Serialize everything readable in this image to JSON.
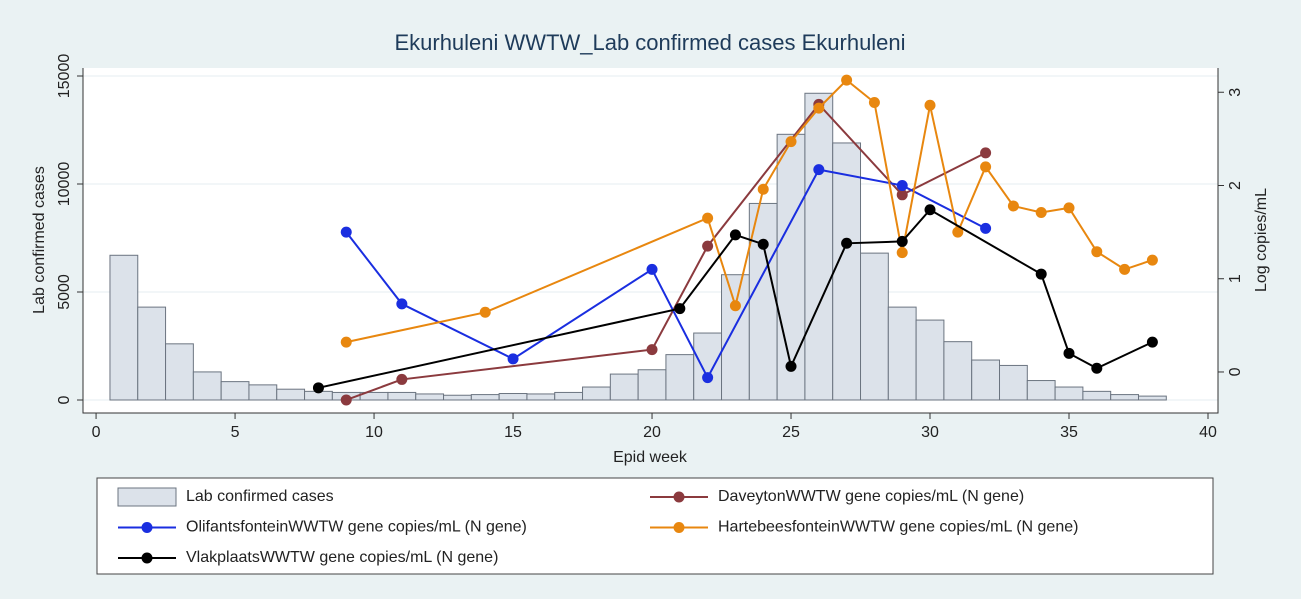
{
  "chart_data": {
    "type": "combo",
    "title": "Ekurhuleni WWTW_Lab confirmed cases Ekurhuleni",
    "x_label": "Epid week",
    "y_label": "Lab confirmed cases",
    "y2_label": "Log copies/mL",
    "xlim": [
      -0.47,
      40.36
    ],
    "xticks": [
      0,
      5,
      10,
      15,
      20,
      25,
      30,
      35,
      40
    ],
    "ylim": [
      -602,
      15370
    ],
    "yticks": [
      0,
      5000,
      10000,
      15000
    ],
    "y2lim": [
      -0.44,
      3.26
    ],
    "y2ticks": [
      0,
      1,
      2,
      3
    ],
    "grid": true,
    "legend": "bottom",
    "series": [
      {
        "name": "Lab confirmed cases",
        "type": "bar",
        "color": "#dce2ea",
        "x": [
          1,
          2,
          3,
          4,
          5,
          6,
          7,
          8,
          9,
          10,
          11,
          12,
          13,
          14,
          15,
          16,
          17,
          18,
          19,
          20,
          21,
          22,
          23,
          24,
          25,
          26,
          27,
          28,
          29,
          30,
          31,
          32,
          33,
          34,
          35,
          36,
          37,
          38
        ],
        "values": [
          6700,
          4300,
          2600,
          1300,
          850,
          700,
          500,
          400,
          350,
          350,
          350,
          280,
          220,
          250,
          300,
          280,
          350,
          600,
          1200,
          1400,
          2100,
          3100,
          5800,
          9100,
          12300,
          14200,
          11900,
          6800,
          4300,
          3700,
          2700,
          1850,
          1600,
          900,
          600,
          400,
          250,
          180
        ]
      },
      {
        "name": "DaveytonWWTW gene copies/mL (N gene)",
        "type": "line",
        "axis": "y2",
        "color": "#8b3a3e",
        "x": [
          9,
          11,
          20,
          22,
          26,
          29,
          32
        ],
        "values": [
          -0.3,
          -0.08,
          0.24,
          1.35,
          2.87,
          1.9,
          2.35
        ]
      },
      {
        "name": "OlifantsfonteinWWTW gene copies/mL (N gene)",
        "type": "line",
        "axis": "y2",
        "color": "#1a2ee0",
        "x": [
          9,
          11,
          15,
          20,
          22,
          26,
          29,
          32
        ],
        "values": [
          1.5,
          0.73,
          0.14,
          1.1,
          -0.06,
          2.17,
          2.0,
          1.54
        ]
      },
      {
        "name": "HartebeesfonteinWWTW gene copies/mL (N gene)",
        "type": "line",
        "axis": "y2",
        "color": "#e8870f",
        "x": [
          9,
          14,
          22,
          23,
          24,
          25,
          26,
          27,
          28,
          29,
          30,
          31,
          32,
          33,
          34,
          35,
          36,
          37,
          38
        ],
        "values": [
          0.32,
          0.64,
          1.65,
          0.71,
          1.96,
          2.47,
          2.83,
          3.13,
          2.89,
          1.28,
          2.86,
          1.5,
          2.2,
          1.78,
          1.71,
          1.76,
          1.29,
          1.1,
          1.2
        ]
      },
      {
        "name": "VlakplaatsWWTW gene copies/mL (N gene)",
        "type": "line",
        "axis": "y2",
        "color": "#000000",
        "x": [
          8,
          21,
          23,
          24,
          25,
          27,
          29,
          30,
          34,
          35,
          36,
          38
        ],
        "values": [
          -0.17,
          0.68,
          1.47,
          1.37,
          0.06,
          1.38,
          1.4,
          1.74,
          1.05,
          0.2,
          0.04,
          0.32
        ]
      }
    ]
  }
}
